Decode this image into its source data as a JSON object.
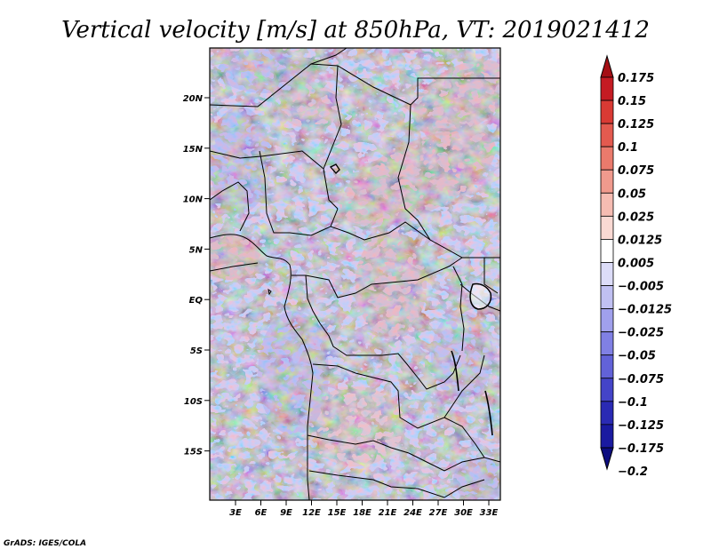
{
  "title": "Vertical velocity [m/s] at 850hPa, VT: 2019021412",
  "credit": "GrADS: IGES/COLA",
  "map": {
    "lat_labels": [
      "20N",
      "15N",
      "10N",
      "5N",
      "EQ",
      "5S",
      "10S",
      "15S"
    ],
    "lon_labels": [
      "3E",
      "6E",
      "9E",
      "12E",
      "15E",
      "18E",
      "21E",
      "24E",
      "27E",
      "30E",
      "33E"
    ]
  },
  "colorbar": {
    "labels": [
      "0.175",
      "0.15",
      "0.125",
      "0.1",
      "0.075",
      "0.05",
      "0.025",
      "0.0125",
      "0.005",
      "−0.005",
      "−0.0125",
      "−0.025",
      "−0.05",
      "−0.075",
      "−0.1",
      "−0.125",
      "−0.175",
      "−0.2"
    ],
    "colors": [
      "#a50f15",
      "#c51b23",
      "#d93a34",
      "#e35a4f",
      "#ea7a6c",
      "#f09a8d",
      "#f6bcb2",
      "#fad9d3",
      "#ffffff",
      "#dcdcf8",
      "#c0c0f2",
      "#a0a0ec",
      "#8080e4",
      "#6262d8",
      "#4444c8",
      "#2a2ab4",
      "#1a1aa0",
      "#0d0d80"
    ]
  }
}
